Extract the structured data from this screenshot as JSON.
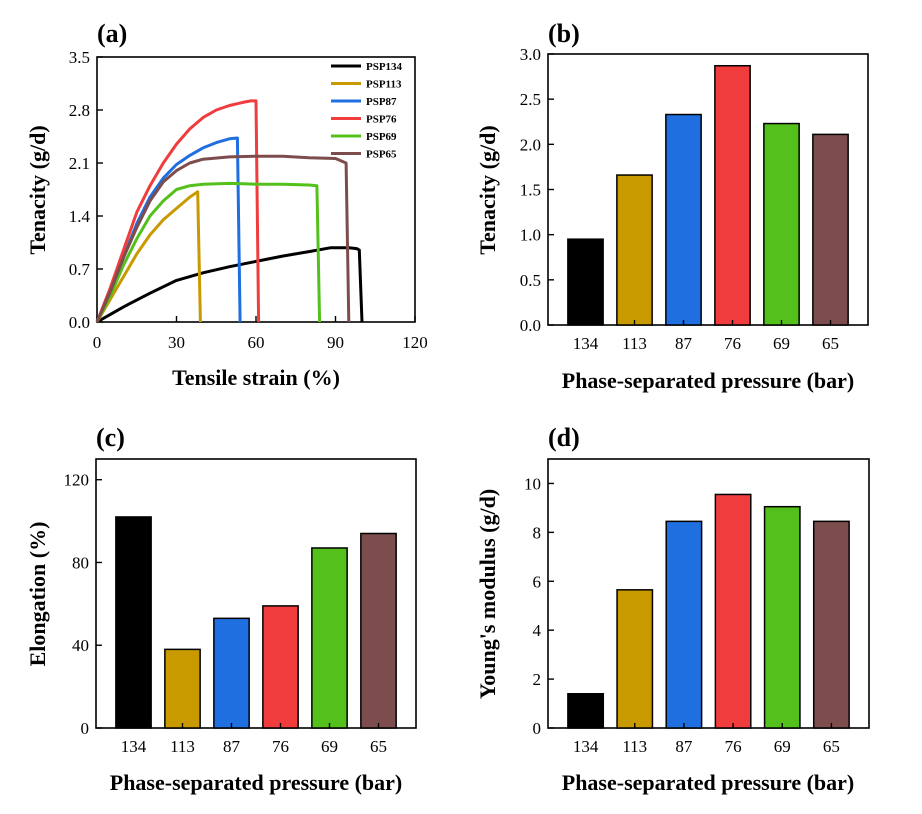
{
  "colors": {
    "PSP134": "#000000",
    "PSP113": "#c89a00",
    "PSP87": "#1f6fe0",
    "PSP76": "#f03c3c",
    "PSP69": "#54c01c",
    "PSP65": "#7d4c4c"
  },
  "chart_data": [
    {
      "id": "a",
      "panel_label": "(a)",
      "type": "line",
      "xlabel": "Tensile strain (%)",
      "ylabel": "Tenacity (g/d)",
      "xlim": [
        0,
        120
      ],
      "ylim": [
        0,
        3.5
      ],
      "xticks": [
        0,
        30,
        60,
        90,
        120
      ],
      "yticks": [
        "0.0",
        "0.7",
        "1.4",
        "2.1",
        "2.8",
        "3.5"
      ],
      "legend_position": "top-right",
      "series": [
        {
          "name": "PSP134",
          "points": [
            [
              0,
              0
            ],
            [
              5,
              0.1
            ],
            [
              10,
              0.2
            ],
            [
              20,
              0.38
            ],
            [
              30,
              0.55
            ],
            [
              40,
              0.65
            ],
            [
              50,
              0.73
            ],
            [
              60,
              0.8
            ],
            [
              70,
              0.87
            ],
            [
              80,
              0.93
            ],
            [
              88,
              0.98
            ],
            [
              95,
              0.98
            ],
            [
              98,
              0.97
            ],
            [
              99,
              0.95
            ],
            [
              100,
              0.0
            ]
          ]
        },
        {
          "name": "PSP113",
          "points": [
            [
              0,
              0
            ],
            [
              5,
              0.3
            ],
            [
              10,
              0.6
            ],
            [
              15,
              0.9
            ],
            [
              20,
              1.15
            ],
            [
              25,
              1.35
            ],
            [
              30,
              1.5
            ],
            [
              35,
              1.65
            ],
            [
              38,
              1.72
            ],
            [
              39,
              0.0
            ]
          ]
        },
        {
          "name": "PSP87",
          "points": [
            [
              0,
              0
            ],
            [
              5,
              0.4
            ],
            [
              10,
              0.85
            ],
            [
              15,
              1.3
            ],
            [
              20,
              1.65
            ],
            [
              25,
              1.9
            ],
            [
              30,
              2.08
            ],
            [
              35,
              2.2
            ],
            [
              40,
              2.3
            ],
            [
              45,
              2.37
            ],
            [
              50,
              2.42
            ],
            [
              53,
              2.43
            ],
            [
              54,
              0.0
            ]
          ]
        },
        {
          "name": "PSP76",
          "points": [
            [
              0,
              0
            ],
            [
              5,
              0.45
            ],
            [
              10,
              0.95
            ],
            [
              15,
              1.45
            ],
            [
              20,
              1.8
            ],
            [
              25,
              2.1
            ],
            [
              30,
              2.35
            ],
            [
              35,
              2.55
            ],
            [
              40,
              2.7
            ],
            [
              45,
              2.8
            ],
            [
              50,
              2.86
            ],
            [
              55,
              2.9
            ],
            [
              58,
              2.92
            ],
            [
              60,
              2.92
            ],
            [
              61,
              0.0
            ]
          ]
        },
        {
          "name": "PSP69",
          "points": [
            [
              0,
              0
            ],
            [
              5,
              0.35
            ],
            [
              10,
              0.75
            ],
            [
              15,
              1.1
            ],
            [
              20,
              1.4
            ],
            [
              25,
              1.6
            ],
            [
              30,
              1.75
            ],
            [
              35,
              1.8
            ],
            [
              40,
              1.82
            ],
            [
              50,
              1.83
            ],
            [
              60,
              1.82
            ],
            [
              70,
              1.82
            ],
            [
              80,
              1.81
            ],
            [
              83,
              1.8
            ],
            [
              84,
              0.0
            ]
          ]
        },
        {
          "name": "PSP65",
          "points": [
            [
              0,
              0
            ],
            [
              5,
              0.4
            ],
            [
              10,
              0.85
            ],
            [
              15,
              1.25
            ],
            [
              20,
              1.6
            ],
            [
              25,
              1.85
            ],
            [
              30,
              2.0
            ],
            [
              35,
              2.1
            ],
            [
              40,
              2.15
            ],
            [
              50,
              2.18
            ],
            [
              60,
              2.19
            ],
            [
              70,
              2.19
            ],
            [
              80,
              2.17
            ],
            [
              90,
              2.16
            ],
            [
              94,
              2.1
            ],
            [
              95,
              0.0
            ]
          ]
        }
      ]
    },
    {
      "id": "b",
      "panel_label": "(b)",
      "type": "bar",
      "xlabel": "Phase-separated pressure (bar)",
      "ylabel": "Tenacity (g/d)",
      "ylim": [
        0,
        3.0
      ],
      "yticks": [
        "0.0",
        "0.5",
        "1.0",
        "1.5",
        "2.0",
        "2.5",
        "3.0"
      ],
      "categories": [
        "134",
        "113",
        "87",
        "76",
        "69",
        "65"
      ],
      "values": [
        0.95,
        1.66,
        2.33,
        2.87,
        2.23,
        2.11
      ]
    },
    {
      "id": "c",
      "panel_label": "(c)",
      "type": "bar",
      "xlabel": "Phase-separated pressure (bar)",
      "ylabel": "Elongation (%)",
      "ylim": [
        0,
        130
      ],
      "yticks": [
        "0",
        "40",
        "80",
        "120"
      ],
      "categories": [
        "134",
        "113",
        "87",
        "76",
        "69",
        "65"
      ],
      "values": [
        102,
        38,
        53,
        59,
        87,
        94
      ]
    },
    {
      "id": "d",
      "panel_label": "(d)",
      "type": "bar",
      "xlabel": "Phase-separated pressure (bar)",
      "ylabel": "Young's modulus (g/d)",
      "ylim": [
        0,
        11
      ],
      "yticks": [
        "0",
        "2",
        "4",
        "6",
        "8",
        "10"
      ],
      "categories": [
        "134",
        "113",
        "87",
        "76",
        "69",
        "65"
      ],
      "values": [
        1.4,
        5.65,
        8.45,
        9.55,
        9.05,
        8.45
      ]
    }
  ]
}
